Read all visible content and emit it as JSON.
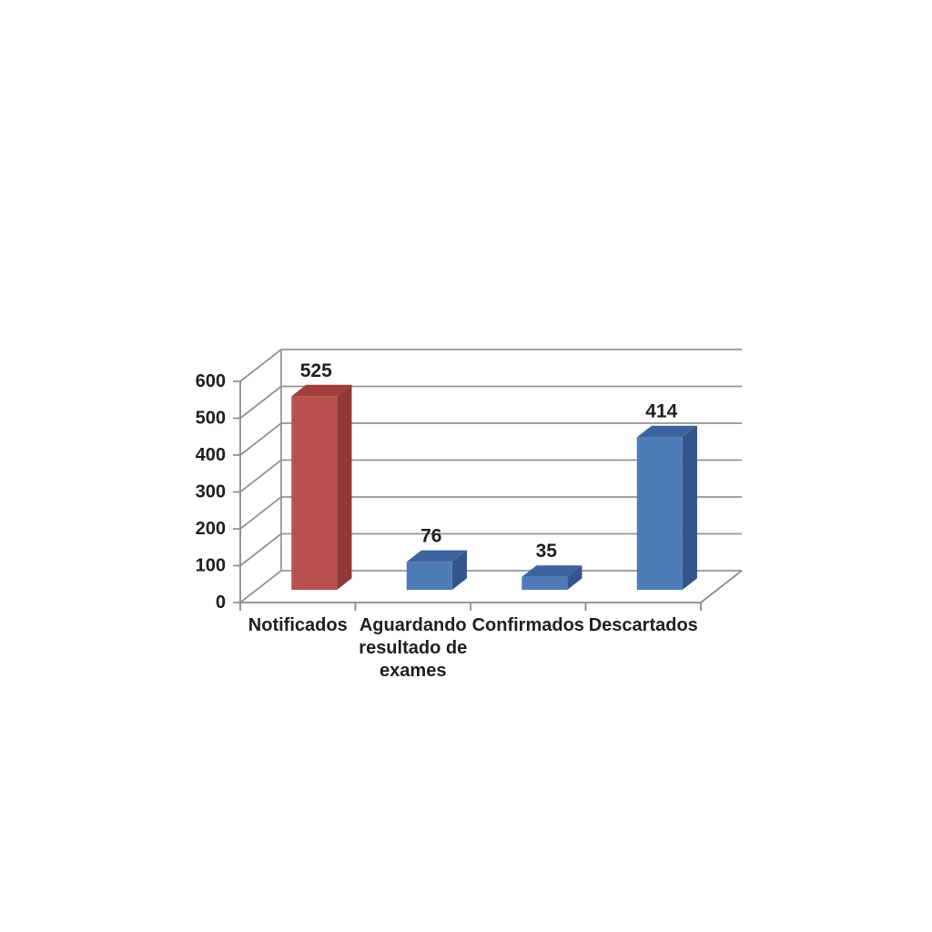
{
  "chart_data": {
    "type": "bar",
    "projection": "3d",
    "title": "",
    "categories": [
      "Notificados",
      "Aguardando resultado de exames",
      "Confirmados",
      "Descartados"
    ],
    "category_lines": [
      [
        "Notificados"
      ],
      [
        "Aguardando",
        "resultado de",
        "exames"
      ],
      [
        "Confirmados"
      ],
      [
        "Descartados"
      ]
    ],
    "values": [
      525,
      76,
      35,
      414
    ],
    "data_labels": [
      "525",
      "76",
      "35",
      "414"
    ],
    "ytick_labels": [
      "0",
      "100",
      "200",
      "300",
      "400",
      "500",
      "600"
    ],
    "yticks": [
      0,
      100,
      200,
      300,
      400,
      500,
      600
    ],
    "ylim": [
      0,
      600
    ],
    "grid": true,
    "legend": false,
    "xlabel": "",
    "ylabel": "",
    "bar_colors": [
      {
        "front": "#b8504d",
        "top": "#a23f3d",
        "side": "#8f3a38"
      },
      {
        "front": "#4d7cb8",
        "top": "#3d649e",
        "side": "#32568b"
      },
      {
        "front": "#4d7cb8",
        "top": "#3d649e",
        "side": "#32568b"
      },
      {
        "front": "#4d7cb8",
        "top": "#3d649e",
        "side": "#32568b"
      }
    ],
    "grid_color": "#949494",
    "axis_color": "#8a8a8a",
    "text_color": "#1f1f1f",
    "background": "#ffffff"
  }
}
